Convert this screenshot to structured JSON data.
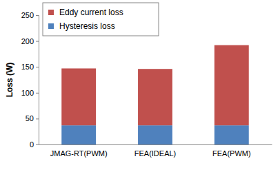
{
  "chart_data": {
    "type": "bar",
    "stacked": true,
    "legend": "top-left",
    "y_label": "Loss (W)",
    "categories": [
      "JMAG-RT(PWM)",
      "FEA(IDEAL)",
      "FEA(PWM)"
    ],
    "series": [
      {
        "name": "Hysteresis loss",
        "color": "#4f81bd",
        "values": [
          37,
          37,
          37
        ]
      },
      {
        "name": "Eddy current loss",
        "color": "#c0504d",
        "values": [
          110,
          109,
          155
        ]
      }
    ],
    "ylim": [
      0,
      250
    ],
    "yticks": [
      0,
      50,
      100,
      150,
      200,
      250
    ]
  }
}
